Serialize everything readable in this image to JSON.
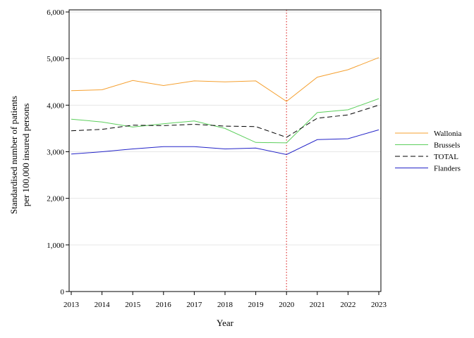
{
  "chart_data": {
    "type": "line",
    "title": "",
    "xlabel": "Year",
    "ylabel_lines": [
      "Standardised number of patients",
      "per 100,000 insured persons"
    ],
    "x": [
      2013,
      2014,
      2015,
      2016,
      2017,
      2018,
      2019,
      2020,
      2021,
      2022,
      2023
    ],
    "ylim": [
      0,
      6000
    ],
    "yticks": [
      0,
      1000,
      2000,
      3000,
      4000,
      5000,
      6000
    ],
    "ytick_labels": [
      "0",
      "1,000",
      "2,000",
      "3,000",
      "4,000",
      "5,000",
      "6,000"
    ],
    "grid": "horizontal",
    "legend_position": "right",
    "reference_line": {
      "x": 2020,
      "color": "#e03a3a",
      "style": "dotted"
    },
    "series": [
      {
        "name": "Wallonia",
        "color": "#f5a030",
        "style": "solid",
        "values": [
          4310,
          4330,
          4530,
          4420,
          4520,
          4500,
          4520,
          4080,
          4600,
          4760,
          5020
        ]
      },
      {
        "name": "Brussels",
        "color": "#5ccf5c",
        "style": "solid",
        "values": [
          3700,
          3640,
          3530,
          3600,
          3660,
          3500,
          3200,
          3190,
          3840,
          3900,
          4140
        ]
      },
      {
        "name": "TOTAL",
        "color": "#000000",
        "style": "dashed",
        "values": [
          3450,
          3480,
          3570,
          3560,
          3590,
          3550,
          3540,
          3310,
          3720,
          3790,
          4000
        ]
      },
      {
        "name": "Flanders",
        "color": "#2323c8",
        "style": "solid",
        "values": [
          2950,
          3000,
          3060,
          3110,
          3110,
          3060,
          3080,
          2940,
          3260,
          3280,
          3470
        ]
      }
    ]
  }
}
